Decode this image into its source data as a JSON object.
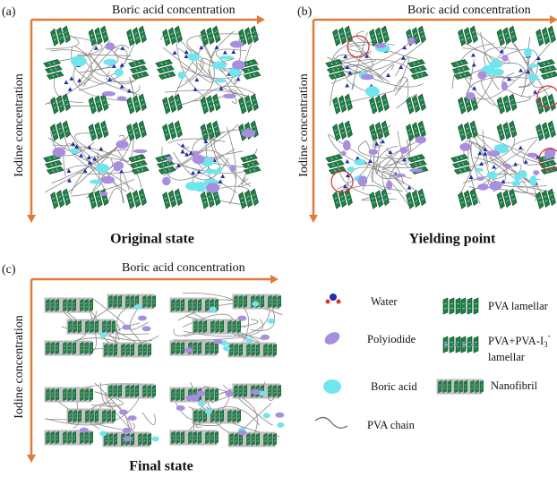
{
  "panels": [
    {
      "label": "(a)",
      "x_axis": "Boric acid concentration",
      "y_axis": "Iodine concentration",
      "caption": "Original state"
    },
    {
      "label": "(b)",
      "x_axis": "Boric acid concentration",
      "y_axis": "Iodine concentration",
      "caption": "Yielding point"
    },
    {
      "label": "(c)",
      "x_axis": "Boric acid concentration",
      "y_axis": "Iodine concentration",
      "caption": "Final state"
    }
  ],
  "legend": {
    "water": "Water",
    "polyiodide": "Polyiodide",
    "boric_acid": "Boric acid",
    "pva_chain": "PVA chain",
    "pva_lamellar": "PVA lamellar",
    "pva_i3_lamellar": {
      "text": "PVA+PVA-I",
      "subscript": "3",
      "superscript": "-",
      "line2": "lamellar"
    },
    "nanofibril": "Nanofibril"
  }
}
